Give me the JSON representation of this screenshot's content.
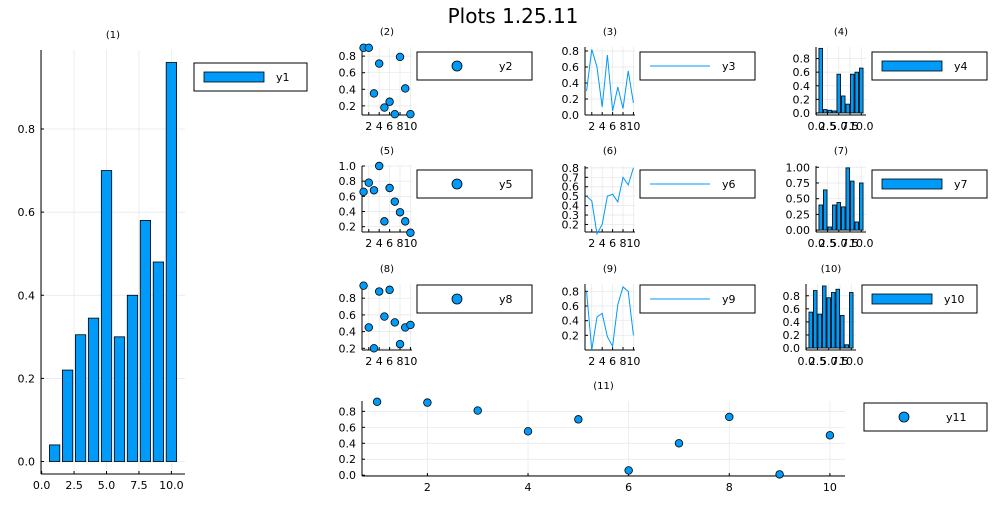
{
  "title": "Plots 1.25.11",
  "colors": {
    "series": "#009af9",
    "grid": "#e6e6e6",
    "axis": "#000000"
  },
  "chart_data": [
    {
      "id": 1,
      "label": "(1)",
      "type": "bar",
      "legend": "y1",
      "x": [
        1,
        2,
        3,
        4,
        5,
        6,
        7,
        8,
        9,
        10
      ],
      "values": [
        0.04,
        0.22,
        0.305,
        0.345,
        0.7,
        0.3,
        0.4,
        0.58,
        0.48,
        0.96
      ],
      "xlim": [
        -0.05,
        11.05
      ],
      "ylim": [
        -0.03,
        0.99
      ],
      "xticks": [
        0,
        2.5,
        5,
        7.5,
        10
      ],
      "xticklabels": [
        "0.0",
        "2.5",
        "5.0",
        "7.5",
        "10.0"
      ],
      "yticks": [
        0,
        0.2,
        0.4,
        0.6,
        0.8
      ],
      "yticklabels": [
        "0.0",
        "0.2",
        "0.4",
        "0.6",
        "0.8"
      ]
    },
    {
      "id": 2,
      "label": "(2)",
      "type": "scatter",
      "legend": "y2",
      "x": [
        1,
        2,
        3,
        4,
        5,
        6,
        7,
        8,
        9,
        10
      ],
      "values": [
        0.9,
        0.9,
        0.35,
        0.71,
        0.18,
        0.25,
        0.1,
        0.79,
        0.41,
        0.1
      ],
      "xlim": [
        0.7,
        10.3
      ],
      "ylim": [
        0.09,
        0.91
      ],
      "xticks": [
        2,
        4,
        6,
        8,
        10
      ],
      "xticklabels": [
        "2",
        "4",
        "6",
        "8",
        "10"
      ],
      "yticks": [
        0.2,
        0.4,
        0.6,
        0.8
      ],
      "yticklabels": [
        "0.2",
        "0.4",
        "0.6",
        "0.8"
      ]
    },
    {
      "id": 3,
      "label": "(3)",
      "type": "line",
      "legend": "y3",
      "x": [
        1,
        2,
        3,
        4,
        5,
        6,
        7,
        8,
        9,
        10
      ],
      "values": [
        0.3,
        0.82,
        0.6,
        0.1,
        0.75,
        0.05,
        0.35,
        0.08,
        0.55,
        0.15
      ],
      "xlim": [
        0.7,
        10.3
      ],
      "ylim": [
        0,
        0.85
      ],
      "xticks": [
        2,
        4,
        6,
        8,
        10
      ],
      "xticklabels": [
        "2",
        "4",
        "6",
        "8",
        "10"
      ],
      "yticks": [
        0,
        0.2,
        0.4,
        0.6,
        0.8
      ],
      "yticklabels": [
        "0.0",
        "0.2",
        "0.4",
        "0.6",
        "0.8"
      ]
    },
    {
      "id": 4,
      "label": "(4)",
      "type": "bar",
      "legend": "y4",
      "x": [
        1,
        2,
        3,
        4,
        5,
        6,
        7,
        8,
        9,
        10
      ],
      "values": [
        0.95,
        0.05,
        0.04,
        0.03,
        0.57,
        0.25,
        0.13,
        0.57,
        0.6,
        0.66
      ],
      "xlim": [
        -0.05,
        11.05
      ],
      "ylim": [
        -0.03,
        0.97
      ],
      "xticks": [
        0,
        2.5,
        5,
        7.5,
        10
      ],
      "xticklabels": [
        "0.0",
        "2.5",
        "5.0",
        "7.5",
        "10.0"
      ],
      "yticks": [
        0,
        0.2,
        0.4,
        0.6,
        0.8
      ],
      "yticklabels": [
        "0.0",
        "0.2",
        "0.4",
        "0.6",
        "0.8"
      ]
    },
    {
      "id": 5,
      "label": "(5)",
      "type": "scatter",
      "legend": "y5",
      "x": [
        1,
        2,
        3,
        4,
        5,
        6,
        7,
        8,
        9,
        10
      ],
      "values": [
        0.66,
        0.78,
        0.68,
        1.0,
        0.27,
        0.71,
        0.53,
        0.39,
        0.27,
        0.12
      ],
      "xlim": [
        0.7,
        10.3
      ],
      "ylim": [
        0.13,
        1.0
      ],
      "xticks": [
        2,
        4,
        6,
        8,
        10
      ],
      "xticklabels": [
        "2",
        "4",
        "6",
        "8",
        "10"
      ],
      "yticks": [
        0.2,
        0.4,
        0.6,
        0.8,
        1.0
      ],
      "yticklabels": [
        "0.2",
        "0.4",
        "0.6",
        "0.8",
        "1.0"
      ]
    },
    {
      "id": 6,
      "label": "(6)",
      "type": "line",
      "legend": "y6",
      "x": [
        1,
        2,
        3,
        4,
        5,
        6,
        7,
        8,
        9,
        10
      ],
      "values": [
        0.5,
        0.45,
        0.1,
        0.2,
        0.5,
        0.52,
        0.44,
        0.7,
        0.62,
        0.8
      ],
      "xlim": [
        0.7,
        10.3
      ],
      "ylim": [
        0.12,
        0.82
      ],
      "xticks": [
        2,
        4,
        6,
        8,
        10
      ],
      "xticklabels": [
        "2",
        "4",
        "6",
        "8",
        "10"
      ],
      "yticks": [
        0.2,
        0.3,
        0.4,
        0.5,
        0.6,
        0.7,
        0.8
      ],
      "yticklabels": [
        "0.2",
        "0.3",
        "0.4",
        "0.5",
        "0.6",
        "0.7",
        "0.8"
      ]
    },
    {
      "id": 7,
      "label": "(7)",
      "type": "bar",
      "legend": "y7",
      "x": [
        1,
        2,
        3,
        4,
        5,
        6,
        7,
        8,
        9,
        10
      ],
      "values": [
        0.4,
        0.64,
        0.05,
        0.4,
        0.44,
        0.37,
        0.99,
        0.78,
        0.13,
        0.75
      ],
      "xlim": [
        -0.05,
        11.05
      ],
      "ylim": [
        -0.03,
        1.02
      ],
      "xticks": [
        0,
        2.5,
        5,
        7.5,
        10
      ],
      "xticklabels": [
        "0.0",
        "2.5",
        "5.0",
        "7.5",
        "10.0"
      ],
      "yticks": [
        0,
        0.25,
        0.5,
        0.75,
        1.0
      ],
      "yticklabels": [
        "0.00",
        "0.25",
        "0.50",
        "0.75",
        "1.00"
      ]
    },
    {
      "id": 8,
      "label": "(8)",
      "type": "scatter",
      "legend": "y8",
      "x": [
        1,
        2,
        3,
        4,
        5,
        6,
        7,
        8,
        9,
        10
      ],
      "values": [
        0.95,
        0.45,
        0.2,
        0.88,
        0.58,
        0.9,
        0.51,
        0.25,
        0.45,
        0.48
      ],
      "xlim": [
        0.7,
        10.3
      ],
      "ylim": [
        0.18,
        0.97
      ],
      "xticks": [
        2,
        4,
        6,
        8,
        10
      ],
      "xticklabels": [
        "2",
        "4",
        "6",
        "8",
        "10"
      ],
      "yticks": [
        0.2,
        0.4,
        0.6,
        0.8
      ],
      "yticklabels": [
        "0.2",
        "0.4",
        "0.6",
        "0.8"
      ]
    },
    {
      "id": 9,
      "label": "(9)",
      "type": "line",
      "legend": "y9",
      "x": [
        1,
        2,
        3,
        4,
        5,
        6,
        7,
        8,
        9,
        10
      ],
      "values": [
        0.8,
        0.0,
        0.45,
        0.5,
        0.18,
        0.05,
        0.62,
        0.86,
        0.8,
        0.2
      ],
      "xlim": [
        0.7,
        10.3
      ],
      "ylim": [
        0,
        0.9
      ],
      "xticks": [
        2,
        4,
        6,
        8,
        10
      ],
      "xticklabels": [
        "2",
        "4",
        "6",
        "8",
        "10"
      ],
      "yticks": [
        0.2,
        0.4,
        0.6,
        0.8
      ],
      "yticklabels": [
        "0.2",
        "0.4",
        "0.6",
        "0.8"
      ]
    },
    {
      "id": 10,
      "label": "(10)",
      "type": "bar",
      "legend": "y10",
      "x": [
        1,
        2,
        3,
        4,
        5,
        6,
        7,
        8,
        9,
        10
      ],
      "values": [
        0.55,
        0.88,
        0.52,
        0.95,
        0.77,
        0.85,
        0.9,
        0.5,
        0.05,
        0.85
      ],
      "xlim": [
        -0.05,
        11.05
      ],
      "ylim": [
        -0.03,
        0.98
      ],
      "xticks": [
        0,
        2.5,
        5,
        7.5,
        10
      ],
      "xticklabels": [
        "0.0",
        "2.5",
        "5.0",
        "7.5",
        "10.0"
      ],
      "yticks": [
        0,
        0.2,
        0.4,
        0.6,
        0.8
      ],
      "yticklabels": [
        "0.0",
        "0.2",
        "0.4",
        "0.6",
        "0.8"
      ]
    },
    {
      "id": 11,
      "label": "(11)",
      "type": "scatter",
      "legend": "y11",
      "x": [
        1,
        2,
        3,
        4,
        5,
        6,
        7,
        8,
        9,
        10
      ],
      "values": [
        0.92,
        0.91,
        0.81,
        0.55,
        0.7,
        0.06,
        0.4,
        0.73,
        0.01,
        0.5
      ],
      "xlim": [
        0.7,
        10.3
      ],
      "ylim": [
        -0.01,
        0.93
      ],
      "xticks": [
        2,
        4,
        6,
        8,
        10
      ],
      "xticklabels": [
        "2",
        "4",
        "6",
        "8",
        "10"
      ],
      "yticks": [
        0,
        0.2,
        0.4,
        0.6,
        0.8
      ],
      "yticklabels": [
        "0.0",
        "0.2",
        "0.4",
        "0.6",
        "0.8"
      ]
    }
  ]
}
